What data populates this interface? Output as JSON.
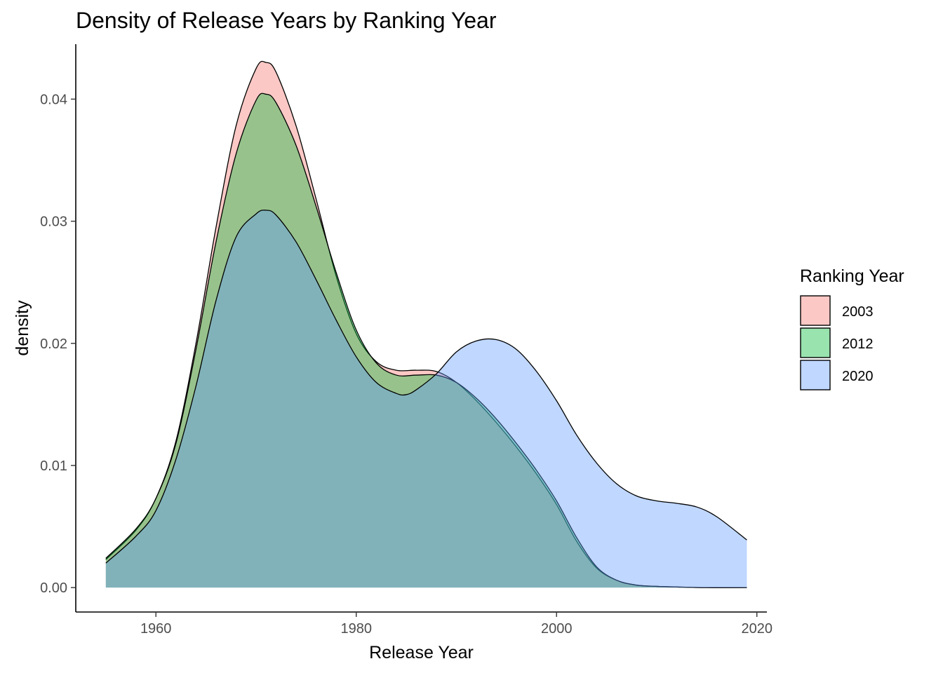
{
  "chart_data": {
    "type": "area",
    "title": "Density of Release Years by Ranking Year",
    "xlabel": "Release Year",
    "ylabel": "density",
    "xlim": [
      1952,
      2021
    ],
    "ylim": [
      -0.002,
      0.0445
    ],
    "x_ticks": [
      1960,
      1980,
      2000,
      2020
    ],
    "x_tick_labels": [
      "1960",
      "1980",
      "2000",
      "2020"
    ],
    "y_ticks": [
      0.0,
      0.01,
      0.02,
      0.03,
      0.04
    ],
    "y_tick_labels": [
      "0.00",
      "0.01",
      "0.02",
      "0.03",
      "0.04"
    ],
    "grid": false,
    "legend": {
      "title": "Ranking Year",
      "position": "right"
    },
    "series": [
      {
        "name": "2003",
        "fill": "#F8766D",
        "x": [
          1955,
          1958,
          1960,
          1962,
          1964,
          1966,
          1968,
          1970,
          1971,
          1972,
          1974,
          1976,
          1978,
          1980,
          1982,
          1984,
          1986,
          1988,
          1990,
          1992,
          1994,
          1996,
          1998,
          2000,
          2002,
          2004,
          2006,
          2008,
          2010,
          2012,
          2015,
          2019
        ],
        "y": [
          0.0023,
          0.0047,
          0.0073,
          0.012,
          0.02,
          0.0295,
          0.0378,
          0.0425,
          0.043,
          0.0422,
          0.0378,
          0.0318,
          0.0255,
          0.0208,
          0.0185,
          0.0178,
          0.0178,
          0.0177,
          0.0168,
          0.0153,
          0.0135,
          0.0115,
          0.0093,
          0.0068,
          0.0038,
          0.0016,
          0.0006,
          0.0002,
          0.0001,
          5e-05,
          0.0,
          0.0
        ]
      },
      {
        "name": "2012",
        "fill": "#00BA38",
        "x": [
          1955,
          1958,
          1960,
          1962,
          1964,
          1966,
          1968,
          1970,
          1971,
          1972,
          1974,
          1976,
          1978,
          1980,
          1982,
          1984,
          1986,
          1988,
          1990,
          1992,
          1994,
          1996,
          1998,
          2000,
          2002,
          2004,
          2006,
          2008,
          2010,
          2012,
          2015,
          2019
        ],
        "y": [
          0.0024,
          0.0048,
          0.0073,
          0.0118,
          0.0195,
          0.0283,
          0.0355,
          0.0399,
          0.0404,
          0.0397,
          0.0362,
          0.0312,
          0.0258,
          0.0211,
          0.0184,
          0.0174,
          0.0174,
          0.0174,
          0.0168,
          0.0155,
          0.0138,
          0.0118,
          0.0096,
          0.0071,
          0.0041,
          0.0017,
          0.0006,
          0.0002,
          0.0001,
          5e-05,
          0.0,
          0.0
        ]
      },
      {
        "name": "2020",
        "fill": "#619CFF",
        "x": [
          1955,
          1958,
          1960,
          1962,
          1964,
          1966,
          1968,
          1970,
          1971,
          1972,
          1974,
          1976,
          1978,
          1980,
          1982,
          1984,
          1985,
          1986,
          1988,
          1990,
          1992,
          1994,
          1996,
          1998,
          2000,
          2002,
          2004,
          2006,
          2008,
          2010,
          2012,
          2014,
          2016,
          2019
        ],
        "y": [
          0.002,
          0.0042,
          0.0063,
          0.0105,
          0.0165,
          0.0235,
          0.0287,
          0.0306,
          0.0309,
          0.0305,
          0.0283,
          0.0252,
          0.0219,
          0.0189,
          0.0168,
          0.0159,
          0.0158,
          0.0162,
          0.0175,
          0.0193,
          0.0202,
          0.0203,
          0.0195,
          0.0177,
          0.0153,
          0.0125,
          0.0102,
          0.0085,
          0.0075,
          0.0071,
          0.0069,
          0.0066,
          0.0058,
          0.0039
        ]
      }
    ]
  }
}
